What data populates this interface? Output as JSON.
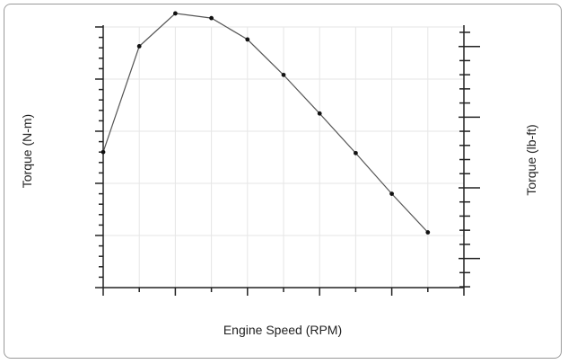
{
  "chart_data": {
    "type": "line",
    "title": "",
    "xlabel": "Engine Speed (RPM)",
    "ylabel": "Torque (N-m)",
    "y2label": "Torque (lb-ft)",
    "xlim": [
      1000,
      2000
    ],
    "ylim": [
      1300,
      1800
    ],
    "y2lim": [
      958.8,
      1327.6
    ],
    "xticks": [
      "1000",
      "1200",
      "1400",
      "1600",
      "1800",
      "2000"
    ],
    "yticks": [
      "1300",
      "1400",
      "1500",
      "1600",
      "1700",
      "1800"
    ],
    "y2ticks": [
      "1000",
      "1100",
      "1200",
      "1300"
    ],
    "grid": true,
    "series": [
      {
        "x": [
          1000,
          1100,
          1200,
          1300,
          1400,
          1500,
          1600,
          1700,
          1800,
          1900
        ],
        "y": [
          1560,
          1763,
          1826,
          1817,
          1776,
          1708,
          1634,
          1558,
          1480,
          1406
        ]
      }
    ]
  },
  "colors": {
    "line": "#555555",
    "grid": "#e6e6e6",
    "axis": "#222222"
  }
}
